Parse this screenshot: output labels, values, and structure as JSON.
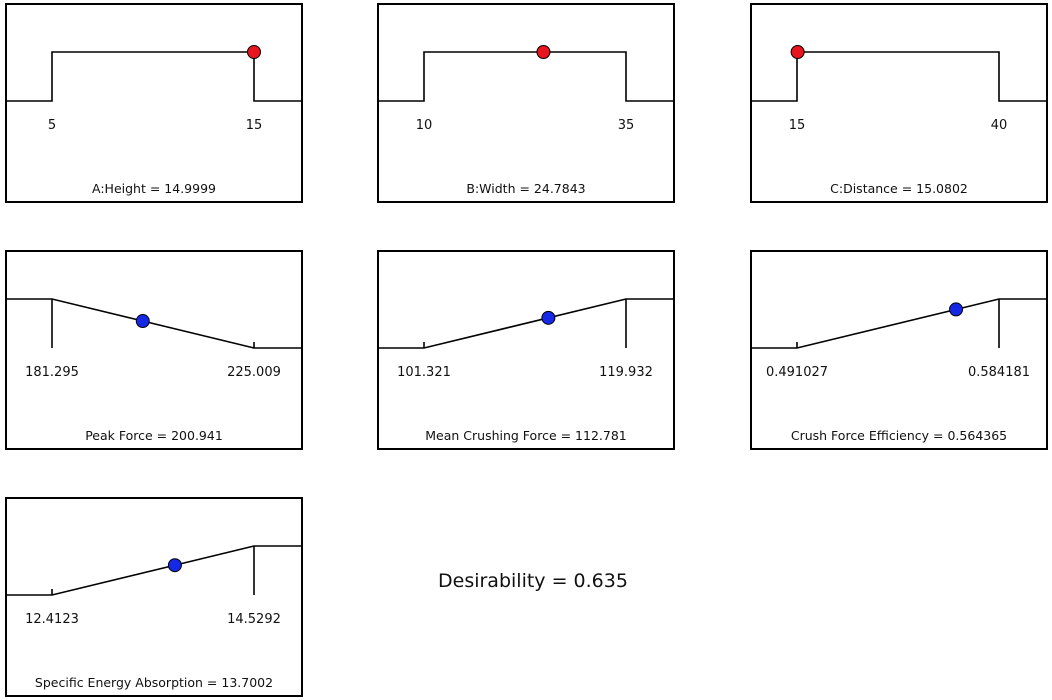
{
  "desirability_label": "Desirability = 0.635",
  "colors": {
    "factor_marker": "#e8141e",
    "response_marker": "#1428e6",
    "line": "#000000"
  },
  "chart_data": [
    {
      "type": "line",
      "kind": "factor",
      "title": "A:Height = 14.9999",
      "min": 5,
      "max": 15,
      "min_label": "5",
      "max_label": "15",
      "value": 14.9999
    },
    {
      "type": "line",
      "kind": "factor",
      "title": "B:Width = 24.7843",
      "min": 10,
      "max": 35,
      "min_label": "10",
      "max_label": "35",
      "value": 24.7843
    },
    {
      "type": "line",
      "kind": "factor",
      "title": "C:Distance = 15.0802",
      "min": 15,
      "max": 40,
      "min_label": "15",
      "max_label": "40",
      "value": 15.0802
    },
    {
      "type": "line",
      "kind": "response",
      "goal": "minimize",
      "title": "Peak Force = 200.941",
      "min": 181.295,
      "max": 225.009,
      "min_label": "181.295",
      "max_label": "225.009",
      "value": 200.941
    },
    {
      "type": "line",
      "kind": "response",
      "goal": "maximize",
      "title": "Mean Crushing Force = 112.781",
      "min": 101.321,
      "max": 119.932,
      "min_label": "101.321",
      "max_label": "119.932",
      "value": 112.781
    },
    {
      "type": "line",
      "kind": "response",
      "goal": "maximize",
      "title": "Crush Force Efficiency = 0.564365",
      "min": 0.491027,
      "max": 0.584181,
      "min_label": "0.491027",
      "max_label": "0.584181",
      "value": 0.564365
    },
    {
      "type": "line",
      "kind": "response",
      "goal": "maximize",
      "title": "Specific Energy Absorption = 13.7002",
      "min": 12.4123,
      "max": 14.5292,
      "min_label": "12.4123",
      "max_label": "14.5292",
      "value": 13.7002
    }
  ]
}
